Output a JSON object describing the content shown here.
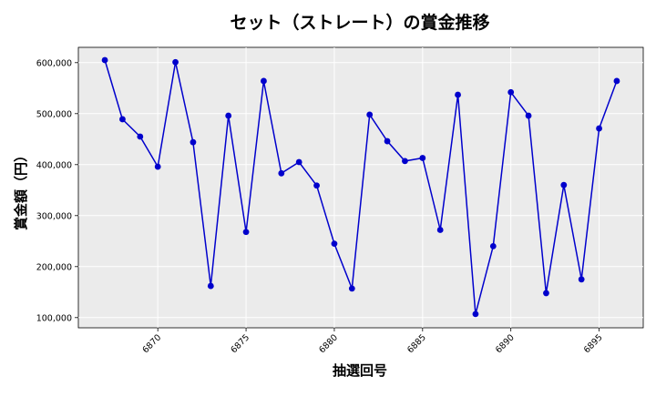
{
  "chart_data": {
    "type": "line",
    "title": "セット（ストレート）の賞金推移",
    "xlabel": "抽選回号",
    "ylabel": "賞金額（円）",
    "xlim": [
      6865.5,
      6897.5
    ],
    "ylim": [
      80000,
      630000
    ],
    "xticks": [
      6870,
      6875,
      6880,
      6885,
      6890,
      6895
    ],
    "xtick_labels": [
      "6870",
      "6875",
      "6880",
      "6885",
      "6890",
      "6895"
    ],
    "yticks": [
      100000,
      200000,
      300000,
      400000,
      500000,
      600000
    ],
    "ytick_labels": [
      "100,000",
      "200,000",
      "300,000",
      "400,000",
      "500,000",
      "600,000"
    ],
    "grid": true,
    "series": [
      {
        "color": "#0000cc",
        "x": [
          6867,
          6868,
          6869,
          6870,
          6871,
          6872,
          6873,
          6874,
          6875,
          6876,
          6877,
          6878,
          6879,
          6880,
          6881,
          6882,
          6883,
          6884,
          6885,
          6886,
          6887,
          6888,
          6889,
          6890,
          6891,
          6892,
          6893,
          6894,
          6895,
          6896
        ],
        "values": [
          605000,
          489000,
          455000,
          396000,
          601000,
          444000,
          162000,
          496000,
          268000,
          564000,
          383000,
          405000,
          359000,
          245000,
          157000,
          498000,
          446000,
          407000,
          413000,
          272000,
          537000,
          107000,
          240000,
          542000,
          496000,
          148000,
          360000,
          175000,
          471000,
          564000
        ]
      }
    ]
  }
}
